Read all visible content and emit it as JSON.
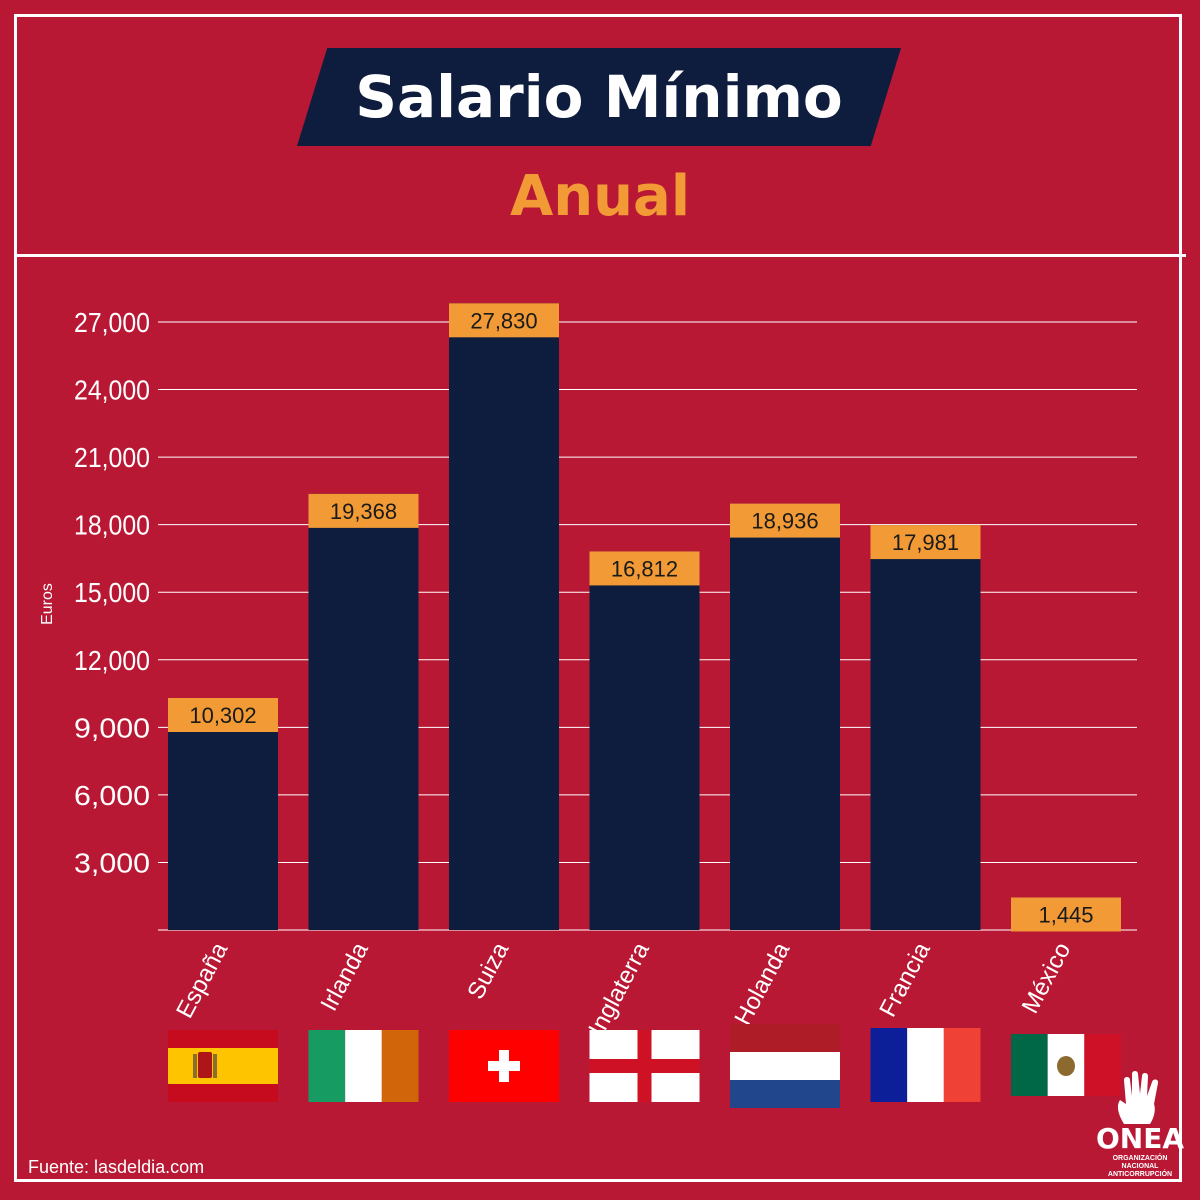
{
  "title": "Salario Mínimo",
  "subtitle": "Anual",
  "source": "Fuente: lasdeldia.com",
  "logo": {
    "name": "ONEA",
    "line1": "ORGANIZACIÓN",
    "line2": "NACIONAL",
    "line3": "ANTICORRUPCIÓN"
  },
  "colors": {
    "background": "#b91834",
    "bar": "#0e1d3e",
    "label_box": "#f29b36",
    "text": "#ffffff"
  },
  "chart_data": {
    "type": "bar",
    "title": "",
    "xlabel": "",
    "ylabel": "Euros",
    "ylim": [
      0,
      27000
    ],
    "yticks": [
      3000,
      6000,
      9000,
      12000,
      15000,
      18000,
      21000,
      24000,
      27000
    ],
    "ytick_labels": [
      "3,000",
      "6,000",
      "9,000",
      "12,000",
      "15,000",
      "18,000",
      "21,000",
      "24,000",
      "27,000"
    ],
    "grid": true,
    "categories": [
      "España",
      "Irlanda",
      "Suiza",
      "Inglaterra",
      "Holanda",
      "Francia",
      "México"
    ],
    "values": [
      10302,
      19368,
      27830,
      16812,
      18936,
      17981,
      1445
    ],
    "value_labels": [
      "10,302",
      "19,368",
      "27,830",
      "16,812",
      "18,936",
      "17,981",
      "1,445"
    ],
    "flags": [
      "spain-flag",
      "ireland-flag",
      "switzerland-flag",
      "england-flag",
      "netherlands-flag",
      "france-flag",
      "mexico-flag"
    ]
  }
}
